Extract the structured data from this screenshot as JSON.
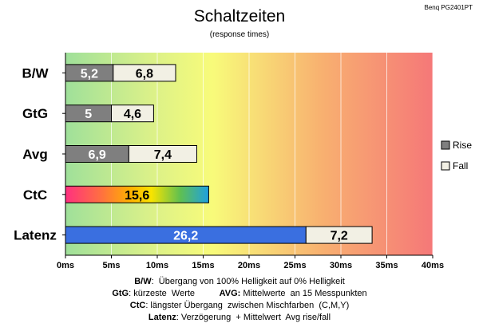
{
  "chart_data": {
    "type": "bar",
    "orientation": "horizontal",
    "stacked": true,
    "title": "Schaltzeiten",
    "subtitle": "(response times)",
    "corner_label": "Benq PG2401PT",
    "categories": [
      "B/W",
      "GtG",
      "Avg",
      "CtC",
      "Latenz"
    ],
    "series": [
      {
        "name": "Rise",
        "values": [
          5.2,
          5,
          6.9,
          15.6,
          26.2
        ],
        "labels": [
          "5,2",
          "5",
          "6,9",
          "15,6",
          "26,2"
        ]
      },
      {
        "name": "Fall",
        "values": [
          6.8,
          4.6,
          7.4,
          null,
          7.2
        ],
        "labels": [
          "6,8",
          "4,6",
          "7,4",
          null,
          "7,2"
        ]
      }
    ],
    "xlim": [
      0,
      40
    ],
    "xticks": [
      "0ms",
      "5ms",
      "10ms",
      "15ms",
      "20ms",
      "25ms",
      "30ms",
      "35ms",
      "40ms"
    ],
    "grid": true,
    "legend_position": "right",
    "colors": {
      "rise": "#7f7f7f",
      "fall": "#f2f0e4",
      "latenz_rise": "#3a6fe0",
      "background_gradient": [
        "#9fe09a",
        "#f8fb7a",
        "#f8b070",
        "#f57878"
      ],
      "ctc_gradient": [
        "#ff3080",
        "#ffb000",
        "#f8e400",
        "#60c050",
        "#1ea0e0"
      ]
    }
  },
  "notes": [
    {
      "parts": [
        {
          "b": "B/W"
        },
        {
          "t": ":  Übergang von 100% Helligkeit auf 0% Helligkeit"
        }
      ]
    },
    {
      "parts": [
        {
          "b": "GtG"
        },
        {
          "t": ": kürzeste  Werte          "
        },
        {
          "b": "AVG:"
        },
        {
          "t": " Mittelwerte  an 15 Messpunkten"
        }
      ]
    },
    {
      "parts": [
        {
          "b": "CtC"
        },
        {
          "t": ": längster Übergang  zwischen Mischfarben  (C,M,Y)"
        }
      ]
    },
    {
      "parts": [
        {
          "b": "Latenz"
        },
        {
          "t": ": Verzögerung  + Mittelwert  Avg rise/fall"
        }
      ]
    }
  ]
}
